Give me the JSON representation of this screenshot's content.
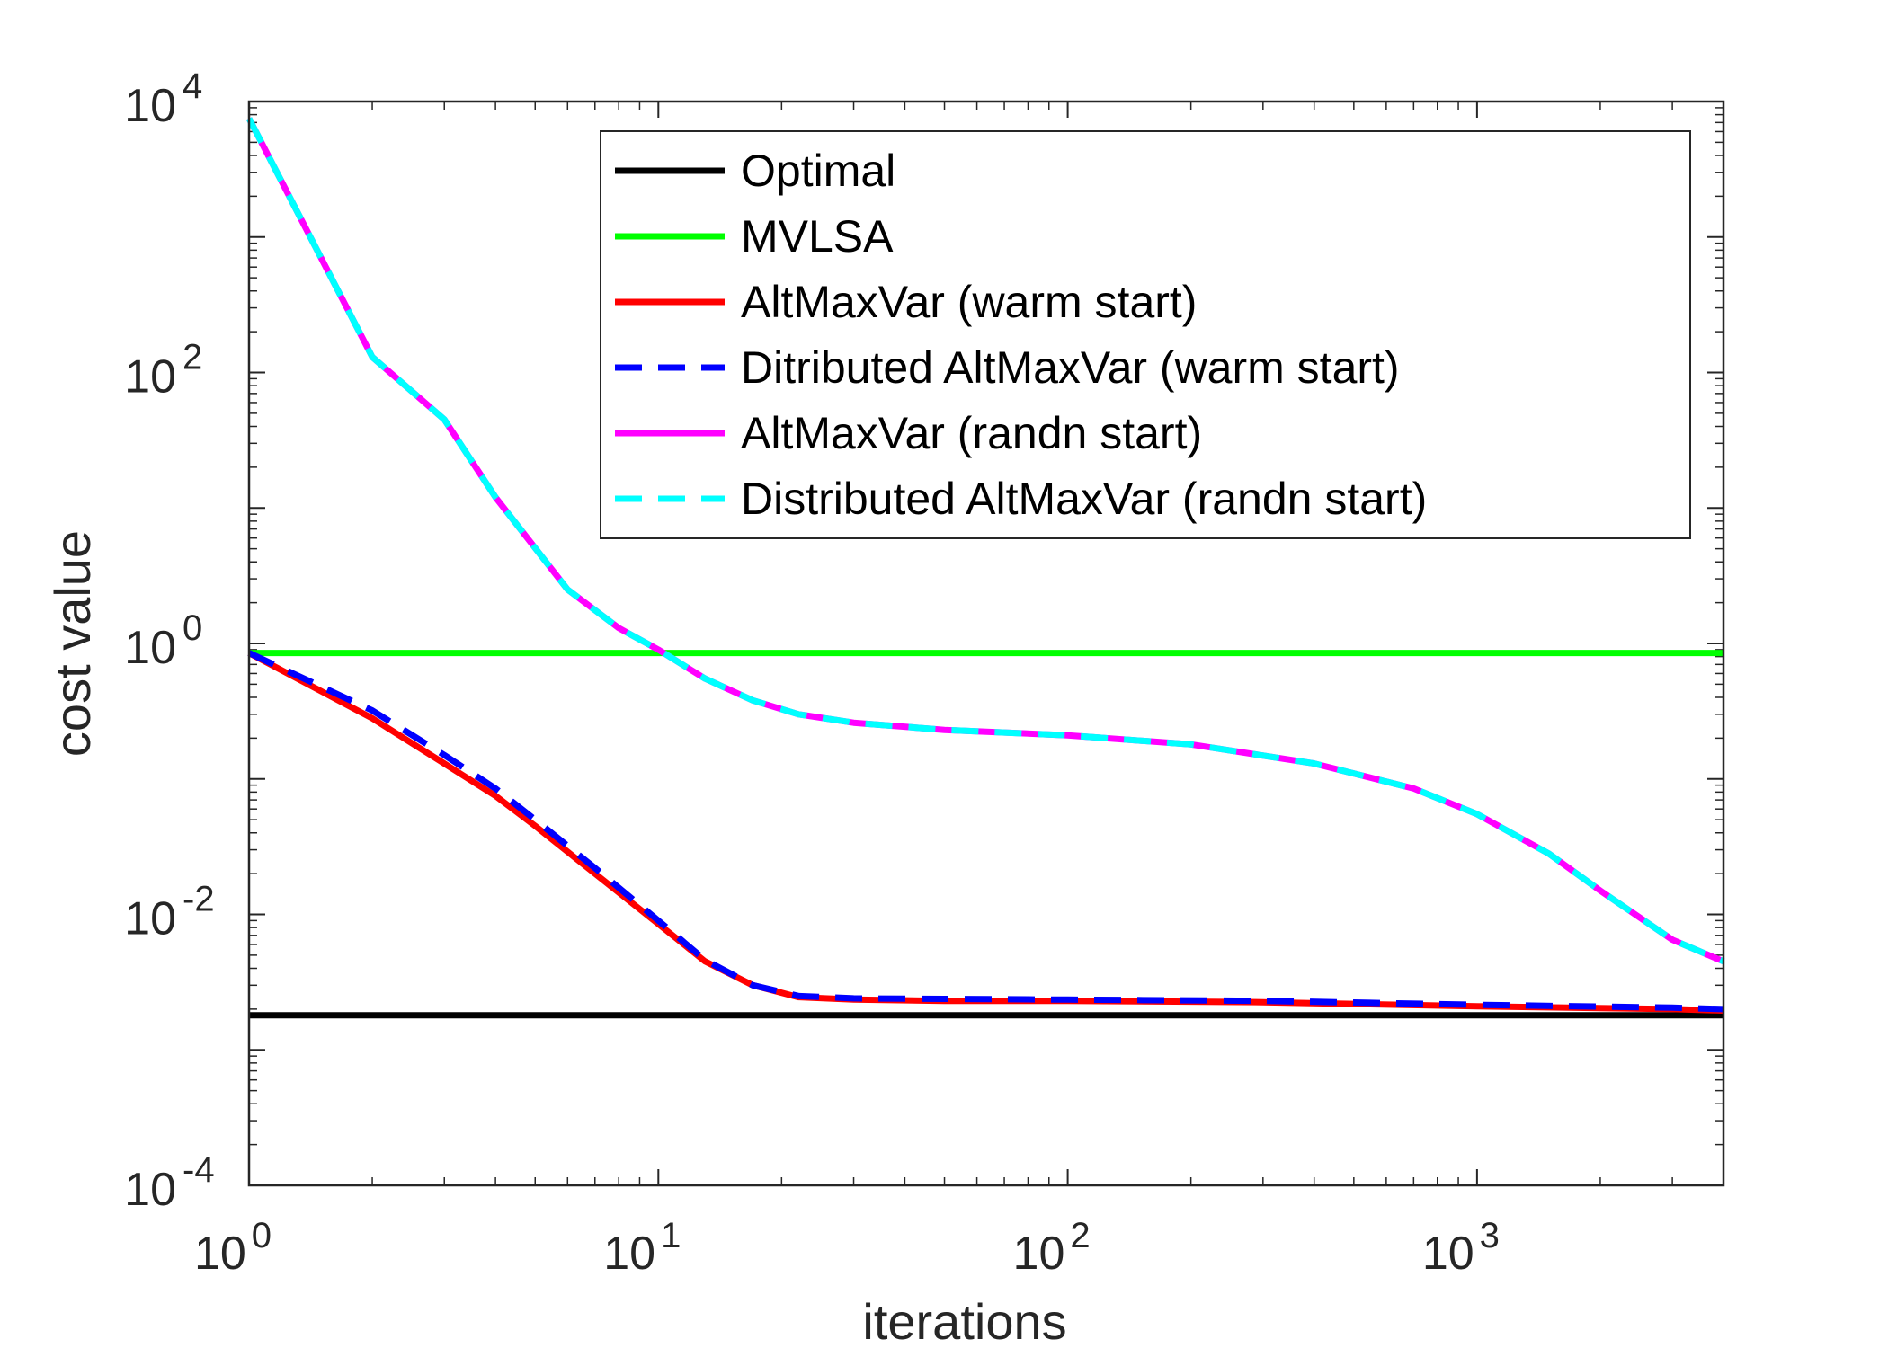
{
  "chart_data": {
    "type": "line",
    "title": "",
    "xlabel": "iterations",
    "ylabel": "cost value",
    "xscale": "log",
    "yscale": "log",
    "xlim": [
      1,
      4000
    ],
    "ylim": [
      0.0001,
      10000
    ],
    "x_ticks": [
      {
        "value": 1,
        "base": "10",
        "exp": "0"
      },
      {
        "value": 10,
        "base": "10",
        "exp": "1"
      },
      {
        "value": 100,
        "base": "10",
        "exp": "2"
      },
      {
        "value": 1000,
        "base": "10",
        "exp": "3"
      }
    ],
    "y_ticks": [
      {
        "value": 0.0001,
        "base": "10",
        "exp": "-4"
      },
      {
        "value": 0.01,
        "base": "10",
        "exp": "-2"
      },
      {
        "value": 1,
        "base": "10",
        "exp": "0"
      },
      {
        "value": 100,
        "base": "10",
        "exp": "2"
      },
      {
        "value": 10000,
        "base": "10",
        "exp": "4"
      }
    ],
    "grid": false,
    "legend_position": "top-right",
    "series": [
      {
        "name": "Optimal",
        "color": "#000000",
        "dash": "solid",
        "x": [
          1,
          4000
        ],
        "y": [
          0.0018,
          0.0018
        ]
      },
      {
        "name": "MVLSA",
        "color": "#00ff00",
        "dash": "solid",
        "x": [
          1,
          4000
        ],
        "y": [
          0.85,
          0.85
        ]
      },
      {
        "name": "AltMaxVar (warm start)",
        "color": "#ff0000",
        "dash": "solid",
        "x": [
          1,
          2,
          3,
          4,
          5,
          7,
          10,
          13,
          17,
          22,
          30,
          50,
          100,
          300,
          1000,
          3000,
          4000
        ],
        "y": [
          0.85,
          0.28,
          0.13,
          0.075,
          0.045,
          0.02,
          0.0085,
          0.0045,
          0.003,
          0.00245,
          0.00235,
          0.0023,
          0.0023,
          0.00225,
          0.0021,
          0.002,
          0.00195
        ]
      },
      {
        "name": "Ditributed AltMaxVar (warm start)",
        "color": "#0000ff",
        "dash": "dashed",
        "x": [
          1,
          2,
          3,
          4,
          5,
          7,
          10,
          13,
          17,
          22,
          30,
          50,
          100,
          300,
          1000,
          3000,
          4000
        ],
        "y": [
          0.85,
          0.32,
          0.15,
          0.085,
          0.05,
          0.022,
          0.009,
          0.0046,
          0.003,
          0.0025,
          0.0024,
          0.00238,
          0.00235,
          0.0023,
          0.00215,
          0.00205,
          0.002
        ]
      },
      {
        "name": "AltMaxVar (randn start)",
        "color": "#ff00ff",
        "dash": "solid",
        "x": [
          1,
          2,
          3,
          4,
          6,
          8,
          10,
          13,
          17,
          22,
          30,
          50,
          100,
          200,
          400,
          700,
          1000,
          1500,
          2000,
          3000,
          4000
        ],
        "y": [
          7500,
          130,
          45,
          12,
          2.5,
          1.3,
          0.9,
          0.55,
          0.38,
          0.3,
          0.26,
          0.23,
          0.21,
          0.18,
          0.13,
          0.085,
          0.055,
          0.028,
          0.015,
          0.0065,
          0.0045
        ]
      },
      {
        "name": "Distributed AltMaxVar (randn start)",
        "color": "#00ffff",
        "dash": "dashed",
        "x": [
          1,
          2,
          3,
          4,
          6,
          8,
          10,
          13,
          17,
          22,
          30,
          50,
          100,
          200,
          400,
          700,
          1000,
          1500,
          2000,
          3000,
          4000
        ],
        "y": [
          7500,
          130,
          45,
          12,
          2.5,
          1.3,
          0.9,
          0.55,
          0.38,
          0.3,
          0.26,
          0.23,
          0.21,
          0.18,
          0.13,
          0.085,
          0.055,
          0.028,
          0.015,
          0.0065,
          0.0045
        ]
      }
    ]
  }
}
